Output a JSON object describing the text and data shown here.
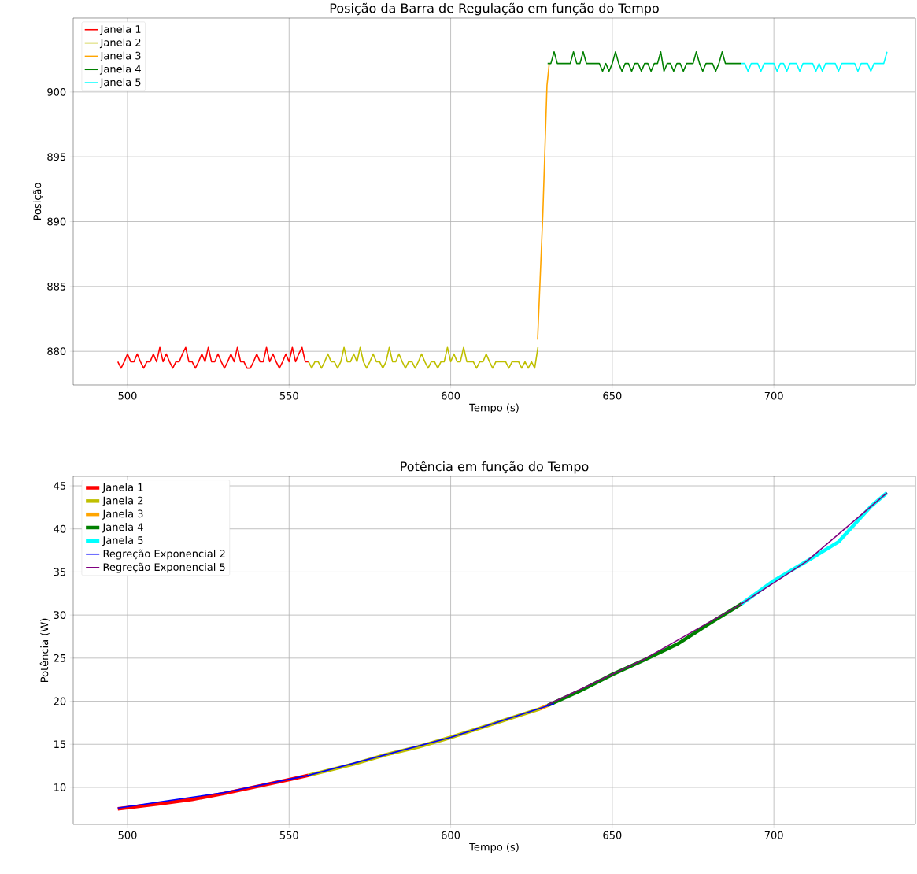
{
  "chart_data": [
    {
      "type": "line",
      "title": "Posição da Barra de Regulação em função do Tempo",
      "xlabel": "Tempo (s)",
      "ylabel": "Posição",
      "xlim": [
        483.2,
        743.8
      ],
      "ylim": [
        877.4,
        905.7
      ],
      "xticks": [
        500,
        550,
        600,
        650,
        700
      ],
      "yticks": [
        880,
        885,
        890,
        895,
        900
      ],
      "grid": true,
      "legend": "top left",
      "series": [
        {
          "name": "Janela 1",
          "color": "#ff0000",
          "x": [
            497,
            498,
            499,
            500,
            501,
            502,
            503,
            504,
            505,
            506,
            507,
            508,
            509,
            510,
            511,
            512,
            513,
            514,
            515,
            516,
            517,
            518,
            519,
            520,
            521,
            522,
            523,
            524,
            525,
            526,
            527,
            528,
            529,
            530,
            531,
            532,
            533,
            534,
            535,
            536,
            537,
            538,
            539,
            540,
            541,
            542,
            543,
            544,
            545,
            546,
            547,
            548,
            549,
            550,
            551,
            552,
            553,
            554,
            555,
            556
          ],
          "values": [
            879.2,
            878.7,
            879.2,
            879.8,
            879.2,
            879.2,
            879.8,
            879.2,
            878.7,
            879.2,
            879.2,
            879.8,
            879.2,
            880.3,
            879.2,
            879.8,
            879.2,
            878.7,
            879.2,
            879.2,
            879.8,
            880.3,
            879.2,
            879.2,
            878.7,
            879.2,
            879.8,
            879.2,
            880.3,
            879.2,
            879.2,
            879.8,
            879.2,
            878.7,
            879.2,
            879.8,
            879.2,
            880.3,
            879.2,
            879.2,
            878.7,
            878.7,
            879.2,
            879.8,
            879.2,
            879.2,
            880.3,
            879.2,
            879.8,
            879.2,
            878.7,
            879.2,
            879.8,
            879.2,
            880.3,
            879.2,
            879.8,
            880.3,
            879.2,
            879.2
          ]
        },
        {
          "name": "Janela 2",
          "color": "#bfbf00",
          "x": [
            556,
            557,
            558,
            559,
            560,
            561,
            562,
            563,
            564,
            565,
            566,
            567,
            568,
            569,
            570,
            571,
            572,
            573,
            574,
            575,
            576,
            577,
            578,
            579,
            580,
            581,
            582,
            583,
            584,
            585,
            586,
            587,
            588,
            589,
            590,
            591,
            592,
            593,
            594,
            595,
            596,
            597,
            598,
            599,
            600,
            601,
            602,
            603,
            604,
            605,
            606,
            607,
            608,
            609,
            610,
            611,
            612,
            613,
            614,
            615,
            616,
            617,
            618,
            619,
            620,
            621,
            622,
            623,
            624,
            625,
            626,
            627
          ],
          "values": [
            879.2,
            878.7,
            879.2,
            879.2,
            878.7,
            879.2,
            879.8,
            879.2,
            879.2,
            878.7,
            879.2,
            880.3,
            879.2,
            879.2,
            879.8,
            879.2,
            880.3,
            879.2,
            878.7,
            879.2,
            879.8,
            879.2,
            879.2,
            878.7,
            879.2,
            880.3,
            879.2,
            879.2,
            879.8,
            879.2,
            878.7,
            879.2,
            879.2,
            878.7,
            879.2,
            879.8,
            879.2,
            878.7,
            879.2,
            879.2,
            878.7,
            879.2,
            879.2,
            880.3,
            879.2,
            879.8,
            879.2,
            879.2,
            880.3,
            879.2,
            879.2,
            879.2,
            878.7,
            879.2,
            879.2,
            879.8,
            879.2,
            878.7,
            879.2,
            879.2,
            879.2,
            879.2,
            878.7,
            879.2,
            879.2,
            879.2,
            878.7,
            879.2,
            878.7,
            879.2,
            878.7,
            880.3
          ]
        },
        {
          "name": "Janela 3",
          "color": "#ffa500",
          "x": [
            626.9,
            628.5,
            629.8,
            630.5
          ],
          "values": [
            880.9,
            890.5,
            900.5,
            902.2
          ]
        },
        {
          "name": "Janela 4",
          "color": "#008000",
          "x": [
            630,
            631,
            632,
            633,
            634,
            635,
            636,
            637,
            638,
            639,
            640,
            641,
            642,
            643,
            644,
            645,
            646,
            647,
            648,
            649,
            650,
            651,
            652,
            653,
            654,
            655,
            656,
            657,
            658,
            659,
            660,
            661,
            662,
            663,
            664,
            665,
            666,
            667,
            668,
            669,
            670,
            671,
            672,
            673,
            674,
            675,
            676,
            677,
            678,
            679,
            680,
            681,
            682,
            683,
            684,
            685,
            686,
            687,
            688,
            689,
            690
          ],
          "values": [
            902.2,
            902.2,
            903.1,
            902.2,
            902.2,
            902.2,
            902.2,
            902.2,
            903.1,
            902.2,
            902.2,
            903.1,
            902.2,
            902.2,
            902.2,
            902.2,
            902.2,
            901.6,
            902.2,
            901.6,
            902.2,
            903.1,
            902.2,
            901.6,
            902.2,
            902.2,
            901.6,
            902.2,
            902.2,
            901.6,
            902.2,
            902.2,
            901.6,
            902.2,
            902.2,
            903.1,
            901.6,
            902.2,
            902.2,
            901.6,
            902.2,
            902.2,
            901.6,
            902.2,
            902.2,
            902.2,
            903.1,
            902.2,
            901.6,
            902.2,
            902.2,
            902.2,
            901.6,
            902.2,
            903.1,
            902.2,
            902.2,
            902.2,
            902.2,
            902.2,
            902.2
          ]
        },
        {
          "name": "Janela 5",
          "color": "#00ffff",
          "x": [
            690,
            691,
            692,
            693,
            694,
            695,
            696,
            697,
            698,
            699,
            700,
            701,
            702,
            703,
            704,
            705,
            706,
            707,
            708,
            709,
            710,
            711,
            712,
            713,
            714,
            715,
            716,
            717,
            718,
            719,
            720,
            721,
            722,
            723,
            724,
            725,
            726,
            727,
            728,
            729,
            730,
            731,
            732,
            733,
            734,
            735
          ],
          "values": [
            902.2,
            902.2,
            901.6,
            902.2,
            902.2,
            902.2,
            901.6,
            902.2,
            902.2,
            902.2,
            902.2,
            901.6,
            902.2,
            902.2,
            901.6,
            902.2,
            902.2,
            902.2,
            901.6,
            902.2,
            902.2,
            902.2,
            902.2,
            901.6,
            902.2,
            901.6,
            902.2,
            902.2,
            902.2,
            902.2,
            901.6,
            902.2,
            902.2,
            902.2,
            902.2,
            902.2,
            901.6,
            902.2,
            902.2,
            902.2,
            901.6,
            902.2,
            902.2,
            902.2,
            902.2,
            903.1
          ]
        }
      ]
    },
    {
      "type": "line",
      "title": "Potência em função do Tempo",
      "xlabel": "Tempo (s)",
      "ylabel": "Potência (W)",
      "xlim": [
        483.2,
        743.8
      ],
      "ylim": [
        5.7,
        46.1
      ],
      "xticks": [
        500,
        550,
        600,
        650,
        700
      ],
      "yticks": [
        10,
        15,
        20,
        25,
        30,
        35,
        40,
        45
      ],
      "grid": true,
      "legend": "top left",
      "series": [
        {
          "name": "Janela 1",
          "color": "#ff0000",
          "x": [
            497,
            510,
            520,
            530,
            540,
            550,
            556
          ],
          "values": [
            7.5,
            8.1,
            8.6,
            9.3,
            10.1,
            10.9,
            11.4
          ]
        },
        {
          "name": "Janela 2",
          "color": "#bfbf00",
          "x": [
            556,
            570,
            580,
            590,
            600,
            610,
            620,
            627.5
          ],
          "values": [
            11.4,
            12.7,
            13.8,
            14.7,
            15.8,
            17.0,
            18.2,
            19.1
          ]
        },
        {
          "name": "Janela 3",
          "color": "#ffa500",
          "x": [
            627.5,
            630
          ],
          "values": [
            19.1,
            19.5
          ]
        },
        {
          "name": "Janela 4",
          "color": "#008000",
          "x": [
            630,
            640,
            650,
            660,
            670,
            680,
            690
          ],
          "values": [
            19.5,
            21.2,
            23.1,
            24.8,
            26.6,
            29.0,
            31.3
          ]
        },
        {
          "name": "Janela 5",
          "color": "#00ffff",
          "x": [
            690,
            700,
            710,
            720,
            730,
            735
          ],
          "values": [
            31.3,
            34.0,
            36.2,
            38.5,
            42.6,
            44.2
          ]
        },
        {
          "name": "Regreção Exponencial 2",
          "color": "#0000ff",
          "x": [
            497,
            530,
            556,
            600,
            632
          ],
          "values": [
            7.6,
            9.4,
            11.4,
            15.8,
            19.7
          ]
        },
        {
          "name": "Regreção Exponencial 5",
          "color": "#800080",
          "x": [
            630,
            660,
            690,
            710,
            735
          ],
          "values": [
            19.6,
            24.9,
            31.3,
            36.2,
            44.2
          ]
        }
      ]
    }
  ]
}
